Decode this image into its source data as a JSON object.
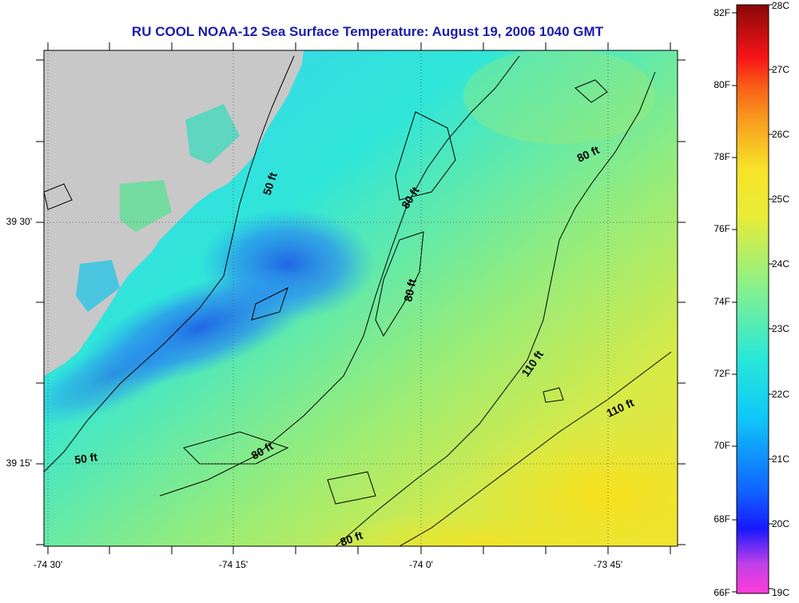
{
  "title": "RU COOL  NOAA-12  Sea Surface Temperature:  August 19, 2006 1040 GMT",
  "axes": {
    "lat_ticks": [
      "39 30'",
      "39 15'"
    ],
    "lon_ticks": [
      "-74 30'",
      "-74 15'",
      "-74 0'",
      "-73 45'"
    ]
  },
  "contours": {
    "labels": [
      "50 ft",
      "50 ft",
      "80 ft",
      "80 ft",
      "80 ft",
      "80 ft",
      "80 ft",
      "110 ft",
      "110 ft"
    ]
  },
  "colorbar": {
    "f_labels": [
      "82F",
      "80F",
      "78F",
      "76F",
      "74F",
      "72F",
      "70F",
      "68F",
      "66F"
    ],
    "c_labels": [
      "28C",
      "27C",
      "26C",
      "25C",
      "24C",
      "23C",
      "22C",
      "21C",
      "20C",
      "19C"
    ],
    "f_range": [
      66,
      82
    ],
    "c_range": [
      19,
      28
    ]
  },
  "colors": {
    "land": "#c8c8c8",
    "title": "#1c1ca8",
    "cold": "#1e64e6",
    "mid": "#28e6dc",
    "warm": "#f0e628"
  }
}
